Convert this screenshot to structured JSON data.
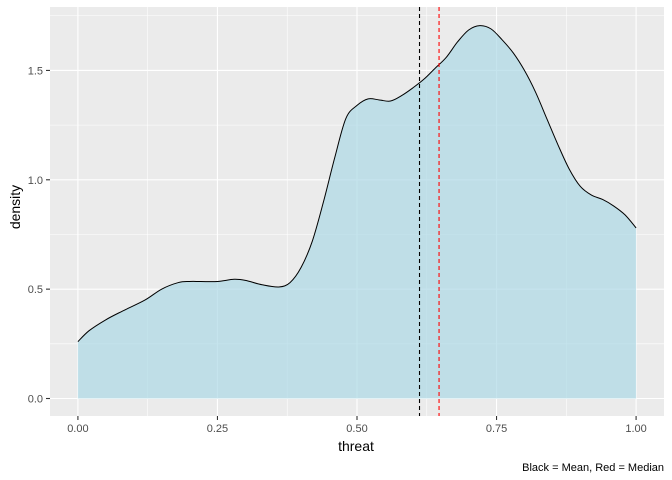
{
  "chart_data": {
    "type": "area",
    "title": "",
    "xlabel": "threat",
    "ylabel": "density",
    "caption": "Black = Mean, Red = Median",
    "xlim": [
      -0.05,
      1.05
    ],
    "ylim": [
      -0.08,
      1.79
    ],
    "x_ticks": [
      0,
      0.25,
      0.5,
      0.75,
      1
    ],
    "x_tick_labels": [
      "0.00",
      "0.25",
      "0.50",
      "0.75",
      "1.00"
    ],
    "y_ticks": [
      0,
      0.5,
      1,
      1.5
    ],
    "y_tick_labels": [
      "0.0",
      "0.5",
      "1.0",
      "1.5"
    ],
    "grid": true,
    "legend": "none",
    "fill_color": "#add8e6",
    "fill_opacity": 0.7,
    "line_color": "#000000",
    "panel_color": "#ebebeb",
    "grid_color": "#ffffff",
    "density": {
      "x": [
        0.0,
        0.02,
        0.05,
        0.08,
        0.12,
        0.15,
        0.18,
        0.2,
        0.22,
        0.25,
        0.28,
        0.3,
        0.33,
        0.36,
        0.38,
        0.4,
        0.42,
        0.44,
        0.46,
        0.48,
        0.5,
        0.52,
        0.54,
        0.56,
        0.58,
        0.6,
        0.62,
        0.64,
        0.66,
        0.68,
        0.7,
        0.72,
        0.74,
        0.76,
        0.78,
        0.8,
        0.82,
        0.84,
        0.86,
        0.88,
        0.9,
        0.92,
        0.94,
        0.96,
        0.98,
        1.0
      ],
      "y": [
        0.26,
        0.31,
        0.36,
        0.4,
        0.45,
        0.5,
        0.53,
        0.535,
        0.535,
        0.535,
        0.545,
        0.54,
        0.52,
        0.51,
        0.53,
        0.6,
        0.72,
        0.9,
        1.1,
        1.28,
        1.34,
        1.37,
        1.365,
        1.36,
        1.385,
        1.42,
        1.46,
        1.51,
        1.56,
        1.63,
        1.685,
        1.705,
        1.69,
        1.64,
        1.58,
        1.5,
        1.4,
        1.28,
        1.16,
        1.05,
        0.97,
        0.93,
        0.91,
        0.88,
        0.84,
        0.78
      ]
    },
    "reference_lines": [
      {
        "name": "mean",
        "x": 0.612,
        "color": "#000000",
        "dash": "dashed"
      },
      {
        "name": "median",
        "x": 0.647,
        "color": "#ff0000",
        "dash": "dashed"
      }
    ]
  }
}
